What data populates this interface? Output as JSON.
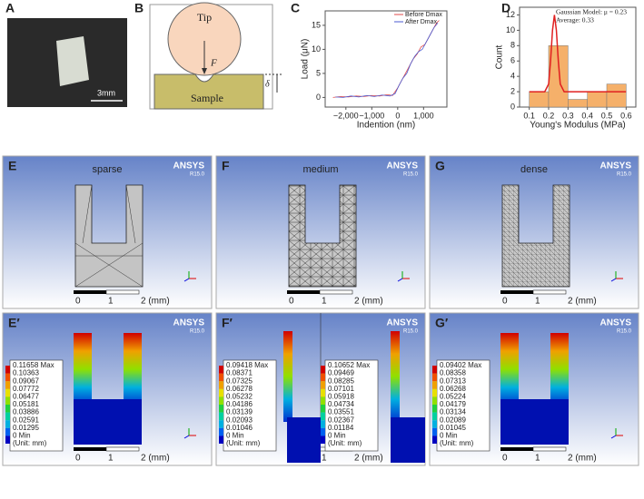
{
  "panels": {
    "A": {
      "label": "A",
      "scale": "3mm"
    },
    "B": {
      "label": "B",
      "tip": "Tip",
      "force": "F",
      "sample": "Sample",
      "delta": "δ"
    },
    "C": {
      "label": "C"
    },
    "D": {
      "label": "D"
    }
  },
  "chart_data": [
    {
      "type": "line",
      "x_label": "Indention (nm)",
      "y_label": "Load (μN)",
      "xlim": [
        -2800,
        1900
      ],
      "ylim": [
        -2,
        18
      ],
      "xticks": [
        {
          "value": -2000,
          "label": "−2,000"
        },
        {
          "value": -1000,
          "label": "−1,000"
        },
        0,
        {
          "value": 1000,
          "label": "1,000"
        }
      ],
      "yticks": [
        0,
        5,
        10,
        15
      ],
      "series": [
        {
          "name": "Before Dmax",
          "color": "#e04a4a",
          "x": [
            -2500,
            -2200,
            -1900,
            -1600,
            -1300,
            -1000,
            -700,
            -400,
            -200,
            0,
            150,
            300,
            450,
            600,
            750,
            900,
            1050,
            1200,
            1350,
            1500,
            1600
          ],
          "values": [
            0,
            0.2,
            0.1,
            0.3,
            0.2,
            0.4,
            0.3,
            0.6,
            0.4,
            2,
            3.5,
            5,
            6.5,
            8,
            9,
            10.5,
            11,
            12.5,
            14,
            15.5,
            16
          ]
        },
        {
          "name": "After Dmax",
          "color": "#4a5ad0",
          "x": [
            -2400,
            -2100,
            -1800,
            -1500,
            -1200,
            -900,
            -600,
            -300,
            -100,
            50,
            200,
            350,
            500,
            650,
            800,
            950,
            1100,
            1250,
            1400,
            1550
          ],
          "values": [
            0.1,
            0,
            0.3,
            0.1,
            0.4,
            0.2,
            0.5,
            0.3,
            0.8,
            2.5,
            4,
            5,
            7,
            8.5,
            9.5,
            10,
            11.5,
            13,
            14.5,
            15.5
          ]
        }
      ]
    },
    {
      "type": "histogram",
      "x_label": "Young's Modulus (MPa)",
      "y_label": "Count",
      "bins": [
        0.1,
        0.2,
        0.3,
        0.4,
        0.5,
        0.6
      ],
      "counts": [
        2,
        8,
        1,
        2,
        3
      ],
      "color": "#f5b06a",
      "xlim": [
        0.05,
        0.65
      ],
      "ylim": [
        0,
        13
      ],
      "xticks": [
        0.1,
        0.2,
        0.3,
        0.4,
        0.5,
        0.6
      ],
      "yticks": [
        0,
        2,
        4,
        6,
        8,
        10,
        12
      ],
      "fit": {
        "color": "#e02020",
        "x": [
          0.1,
          0.18,
          0.2,
          0.21,
          0.22,
          0.23,
          0.24,
          0.25,
          0.26,
          0.28,
          0.3,
          0.6
        ],
        "values": [
          2,
          2,
          3,
          6,
          10,
          12,
          10,
          6,
          3,
          2,
          2,
          2
        ]
      },
      "annotations": [
        "Gaussian Model: μ = 0.23",
        "Average: 0.33"
      ]
    }
  ],
  "mesh_panels": [
    {
      "label": "E",
      "title": "sparse",
      "brand": "ANSYS",
      "version": "R15.0",
      "scale": [
        "0",
        "1",
        "2 (mm)"
      ]
    },
    {
      "label": "F",
      "title": "medium",
      "brand": "ANSYS",
      "version": "R15.0",
      "scale": [
        "0",
        "1",
        "2 (mm)"
      ]
    },
    {
      "label": "G",
      "title": "dense",
      "brand": "ANSYS",
      "version": "R15.0",
      "scale": [
        "0",
        "1",
        "2 (mm)"
      ]
    }
  ],
  "contour_colors": [
    "#d00000",
    "#f05000",
    "#f0a000",
    "#e8e000",
    "#90e000",
    "#20d040",
    "#00d0a0",
    "#00b0e0",
    "#0060f0",
    "#0000c0"
  ],
  "contour_panels": [
    {
      "label": "E′",
      "brand": "ANSYS",
      "version": "R15.0",
      "scale": [
        "0",
        "1",
        "2 (mm)"
      ],
      "legends": [
        {
          "entries": [
            "0.11658 Max",
            "0.10363",
            "0.09067",
            "0.07772",
            "0.06477",
            "0.05181",
            "0.03886",
            "0.02591",
            "0.01295",
            "0 Min"
          ],
          "unit": "(Unit: mm)"
        }
      ]
    },
    {
      "label": "F′",
      "brand": "ANSYS",
      "version": "R15.0",
      "scale": [
        "0",
        "1",
        "2 (mm)"
      ],
      "legends": [
        {
          "entries": [
            "0.09418 Max",
            "0.08371",
            "0.07325",
            "0.06278",
            "0.05232",
            "0.04186",
            "0.03139",
            "0.02093",
            "0.01046",
            "0 Min"
          ],
          "unit": "(Unit: mm)"
        },
        {
          "entries": [
            "0.10652 Max",
            "0.09469",
            "0.08285",
            "0.07101",
            "0.05918",
            "0.04734",
            "0.03551",
            "0.02367",
            "0.01184",
            "0 Min"
          ],
          "unit": "(Unit: mm)"
        }
      ]
    },
    {
      "label": "G′",
      "brand": "ANSYS",
      "version": "R15.0",
      "scale": [
        "0",
        "1",
        "2 (mm)"
      ],
      "legends": [
        {
          "entries": [
            "0.09402 Max",
            "0.08358",
            "0.07313",
            "0.06268",
            "0.05224",
            "0.04179",
            "0.03134",
            "0.02089",
            "0.01045",
            "0 Min"
          ],
          "unit": "(Unit: mm)"
        }
      ]
    }
  ]
}
